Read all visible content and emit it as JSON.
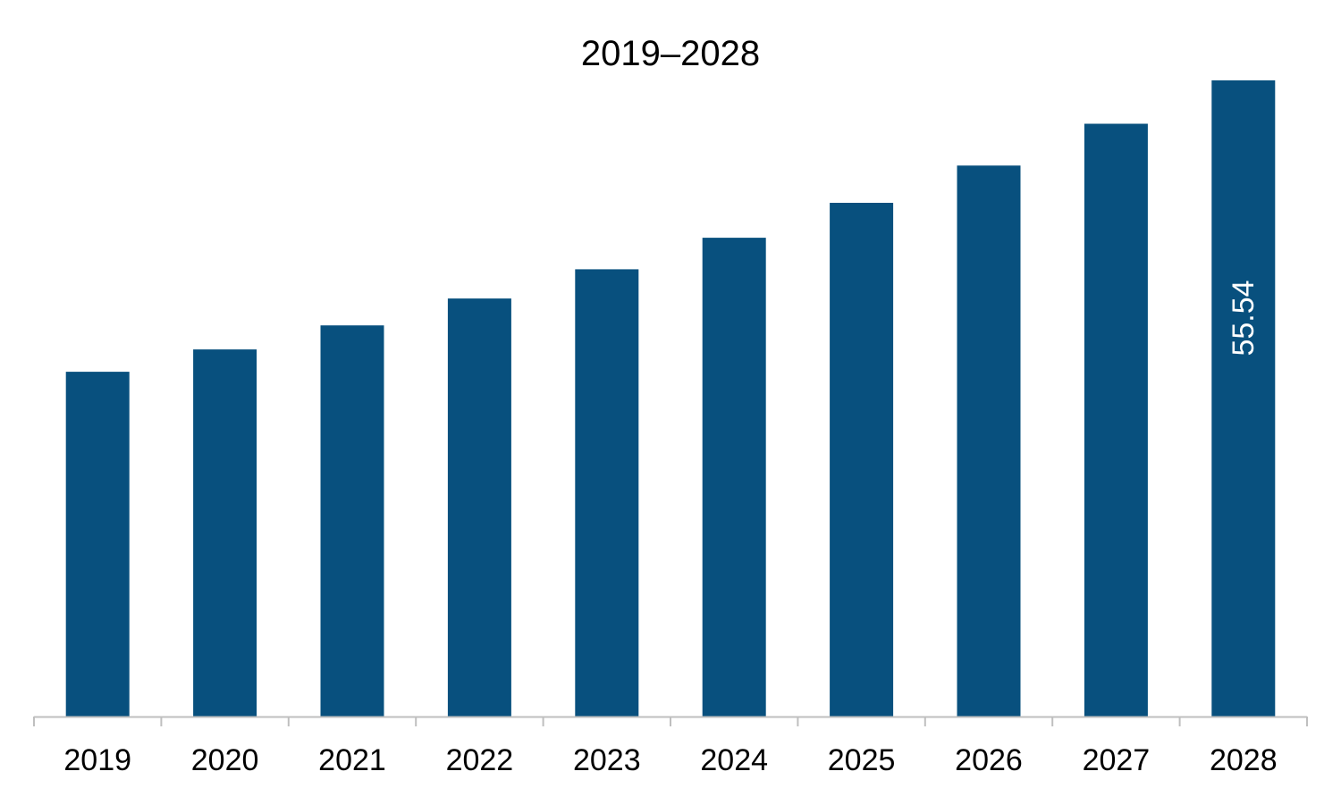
{
  "chart_data": {
    "type": "bar",
    "title": "2019–2028",
    "xlabel": "",
    "ylabel": "",
    "categories": [
      "2019",
      "2020",
      "2021",
      "2022",
      "2023",
      "2024",
      "2025",
      "2026",
      "2027",
      "2028"
    ],
    "values": [
      30.1,
      32.05,
      34.15,
      36.5,
      39.05,
      41.8,
      44.85,
      48.1,
      51.75,
      55.54
    ],
    "data_labels": [
      null,
      null,
      null,
      null,
      null,
      null,
      null,
      null,
      null,
      "55.54"
    ],
    "ylim": [
      0,
      58.5
    ],
    "grid": false,
    "legend": "none",
    "bar_color": "#08507E",
    "axis_color": "#BFBFBF"
  }
}
